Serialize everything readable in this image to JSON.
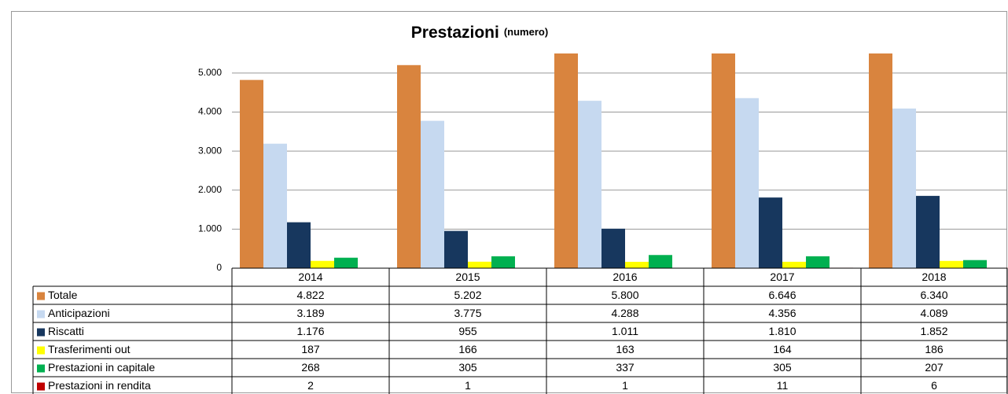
{
  "chart_data": {
    "type": "bar",
    "title": "Prestazioni",
    "subtitle": "(numero)",
    "categories": [
      "2014",
      "2015",
      "2016",
      "2017",
      "2018"
    ],
    "ylim": [
      0,
      5500
    ],
    "yticks": [
      0,
      {
        "value": 1000,
        "label": "1.000"
      },
      {
        "value": 2000,
        "label": "2.000"
      },
      {
        "value": 3000,
        "label": "3.000"
      },
      {
        "value": 4000,
        "label": "4.000"
      },
      {
        "value": 5000,
        "label": "5.000"
      }
    ],
    "grid": true,
    "series": [
      {
        "name": "Totale",
        "color": "#d9843e",
        "values": [
          4822,
          5202,
          5800,
          6646,
          6340
        ],
        "value_labels": [
          "4.822",
          "5.202",
          "5.800",
          "6.646",
          "6.340"
        ]
      },
      {
        "name": "Anticipazioni",
        "color": "#c6d9f0",
        "values": [
          3189,
          3775,
          4288,
          4356,
          4089
        ],
        "value_labels": [
          "3.189",
          "3.775",
          "4.288",
          "4.356",
          "4.089"
        ]
      },
      {
        "name": "Riscatti",
        "color": "#17375e",
        "values": [
          1176,
          955,
          1011,
          1810,
          1852
        ],
        "value_labels": [
          "1.176",
          "955",
          "1.011",
          "1.810",
          "1.852"
        ]
      },
      {
        "name": "Trasferimenti out",
        "color": "#ffff00",
        "values": [
          187,
          166,
          163,
          164,
          186
        ],
        "value_labels": [
          "187",
          "166",
          "163",
          "164",
          "186"
        ]
      },
      {
        "name": "Prestazioni in capitale",
        "color": "#00b050",
        "values": [
          268,
          305,
          337,
          305,
          207
        ],
        "value_labels": [
          "268",
          "305",
          "337",
          "305",
          "207"
        ]
      },
      {
        "name": "Prestazioni in rendita",
        "color": "#c00000",
        "values": [
          2,
          1,
          1,
          11,
          6
        ],
        "value_labels": [
          "2",
          "1",
          "1",
          "11",
          "6"
        ]
      }
    ]
  }
}
